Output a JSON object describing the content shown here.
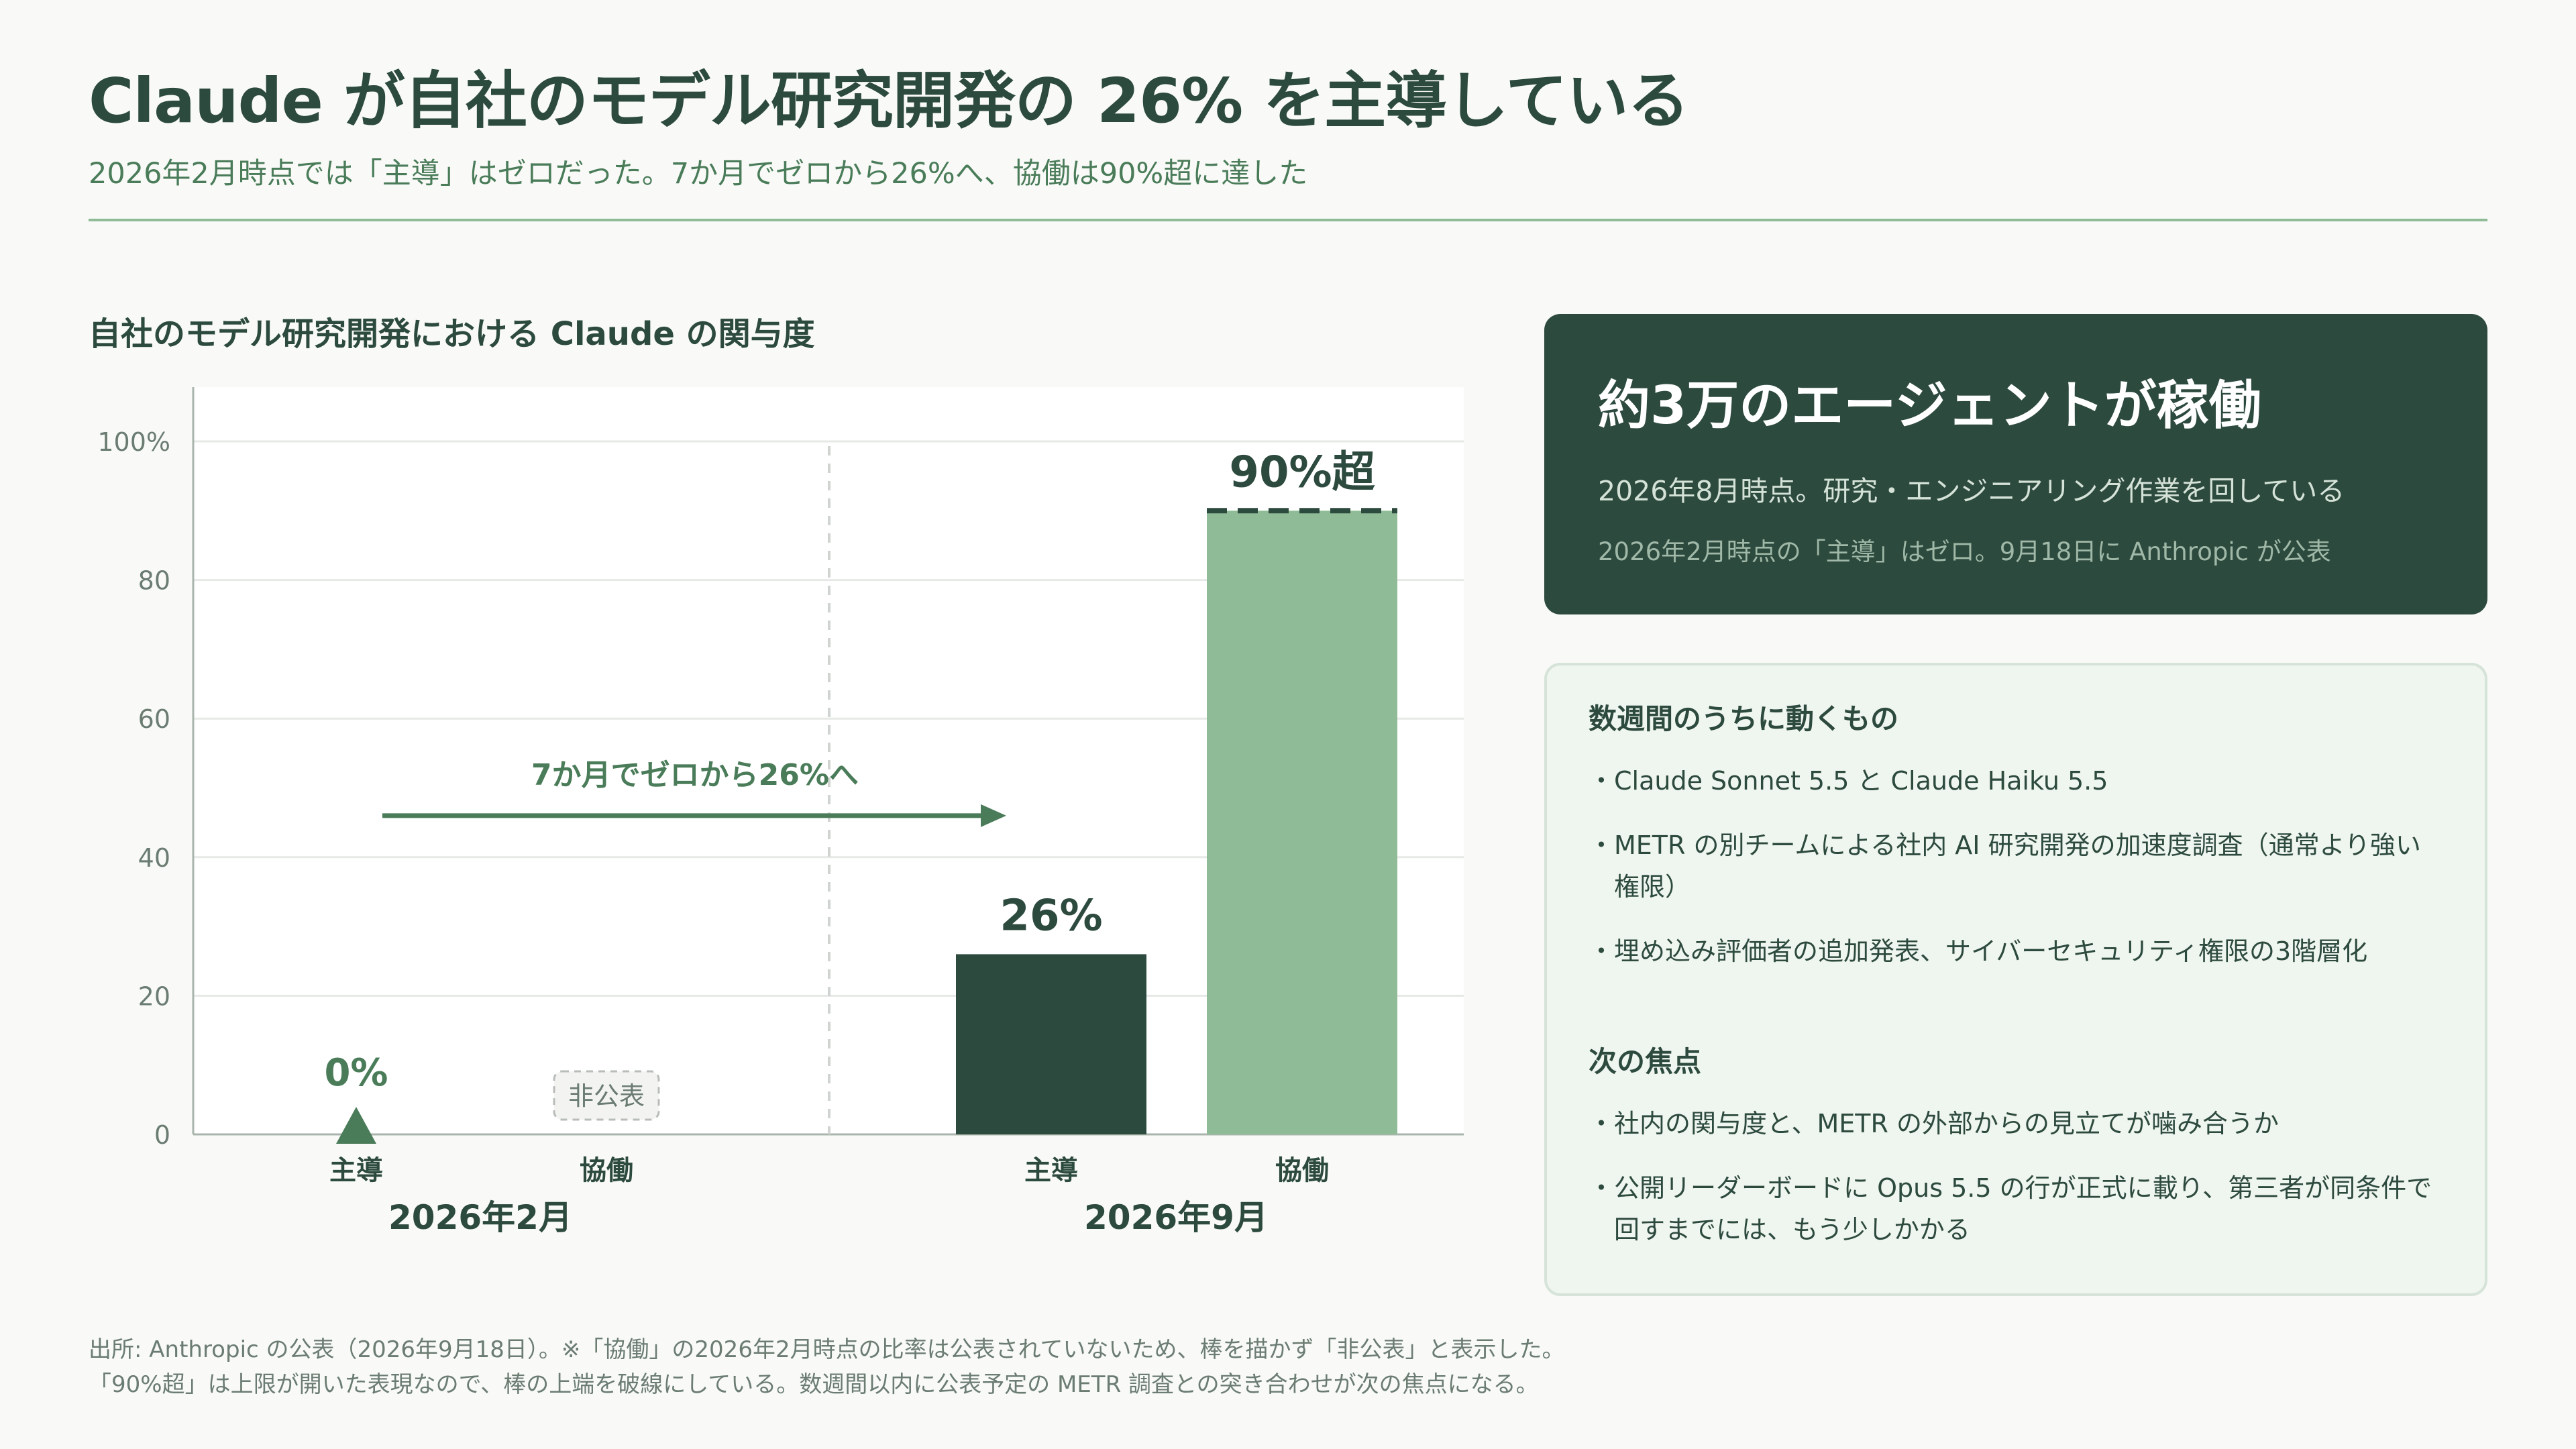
{
  "header": {
    "title": "Claude が自社のモデル研究開発の 26% を主導している",
    "subtitle": "2026年2月時点では「主導」はゼロだった。7か月でゼロから26%へ、協働は90%超に達した"
  },
  "chart_title": "自社のモデル研究開発における Claude の関与度",
  "chart_data": {
    "type": "bar",
    "title": "自社のモデル研究開発における Claude の関与度",
    "groups": [
      "2026年2月",
      "2026年9月"
    ],
    "categories": [
      "主導",
      "協働"
    ],
    "ylim": [
      0,
      100
    ],
    "yticks": [
      0,
      20,
      40,
      60,
      80,
      100
    ],
    "ytick_labels": [
      "0",
      "20",
      "40",
      "60",
      "80",
      "100%"
    ],
    "grid": true,
    "bars": [
      {
        "group": "2026年2月",
        "category": "主導",
        "value": 0,
        "label": "0%",
        "marker": "triangle"
      },
      {
        "group": "2026年2月",
        "category": "協働",
        "value": null,
        "label": "非公表"
      },
      {
        "group": "2026年9月",
        "category": "主導",
        "value": 26,
        "label": "26%"
      },
      {
        "group": "2026年9月",
        "category": "協働",
        "value": 90,
        "label": "90%超",
        "open_upper_bound": true
      }
    ],
    "annotation": {
      "text": "7か月でゼロから26%へ",
      "from_y": 46,
      "to_y": 46
    },
    "colors": {
      "lead": "#2d4a3e",
      "collab": "#8fbc96",
      "accent": "#4a7c59"
    }
  },
  "panel_dark": {
    "headline": "約3万のエージェントが稼働",
    "line1": "2026年8月時点。研究・エンジニアリング作業を回している",
    "line2": "2026年2月時点の「主導」はゼロ。9月18日に Anthropic が公表"
  },
  "panel_light": {
    "section1_title": "数週間のうちに動くもの",
    "section1_items": [
      "Claude Sonnet 5.5 と Claude Haiku 5.5",
      "METR の別チームによる社内 AI 研究開発の加速度調査（通常より強い権限）",
      "埋め込み評価者の追加発表、サイバーセキュリティ権限の3階層化"
    ],
    "section2_title": "次の焦点",
    "section2_items": [
      "社内の関与度と、METR の外部からの見立てが噛み合うか",
      "公開リーダーボードに Opus 5.5 の行が正式に載り、第三者が同条件で回すまでには、もう少しかかる"
    ]
  },
  "footnote": {
    "line1": "出所: Anthropic の公表（2026年9月18日）。※「協働」の2026年2月時点の比率は公表されていないため、棒を描かず「非公表」と表示した。",
    "line2": "「90%超」は上限が開いた表現なので、棒の上端を破線にしている。数週間以内に公表予定の METR 調査との突き合わせが次の焦点になる。"
  }
}
